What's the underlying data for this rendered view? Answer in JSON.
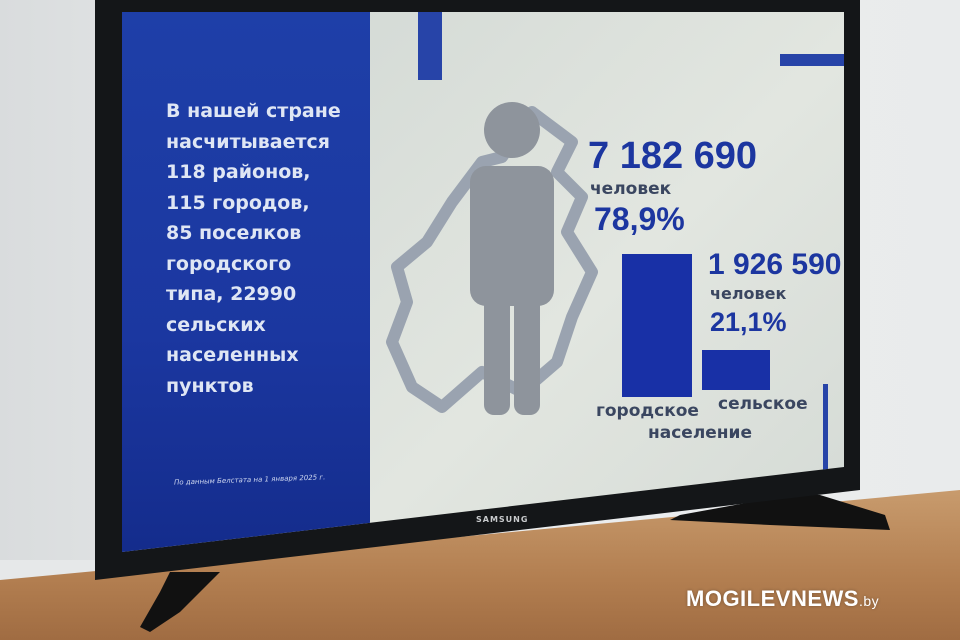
{
  "panel": {
    "lines": [
      "В нашей стране",
      "насчитывается",
      "118 районов,",
      "115 городов,",
      "85 поселков",
      "городского",
      "типа, 22990",
      "сельских",
      "населенных",
      "пунктов"
    ],
    "source": "По данным Белстата на 1 января 2025 г."
  },
  "chart_data": {
    "type": "bar",
    "categories": [
      "городское население",
      "сельское население"
    ],
    "category_labels": [
      "городское",
      "сельское",
      "население"
    ],
    "values": [
      78.9,
      21.1
    ],
    "counts": [
      "7 182 690",
      "1 926 590"
    ],
    "percent_labels": [
      "78,9%",
      "21,1%"
    ],
    "unit": "человек",
    "color": "#1830a6"
  },
  "tv": {
    "brand": "SAMSUNG"
  },
  "watermark": {
    "main": "MOGILEVNEWS",
    "suffix": ".by"
  },
  "colors": {
    "panel": "#1e3fa8",
    "accent": "#1c36a0"
  }
}
